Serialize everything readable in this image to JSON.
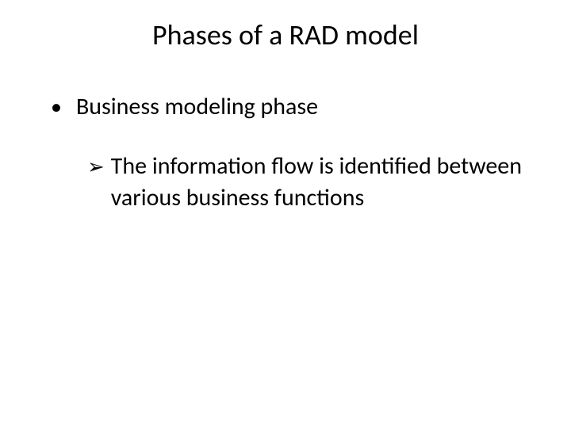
{
  "slide": {
    "title": "Phases of a RAD model",
    "bullets": {
      "level1": {
        "marker": "•",
        "text": "Business modeling phase"
      },
      "level2": {
        "marker": "➢",
        "text": "The information flow is identified between various business functions"
      }
    }
  },
  "styling": {
    "background_color": "#ffffff",
    "text_color": "#000000",
    "title_fontsize": 36,
    "body_fontsize": 30,
    "font_family": "Calibri"
  }
}
